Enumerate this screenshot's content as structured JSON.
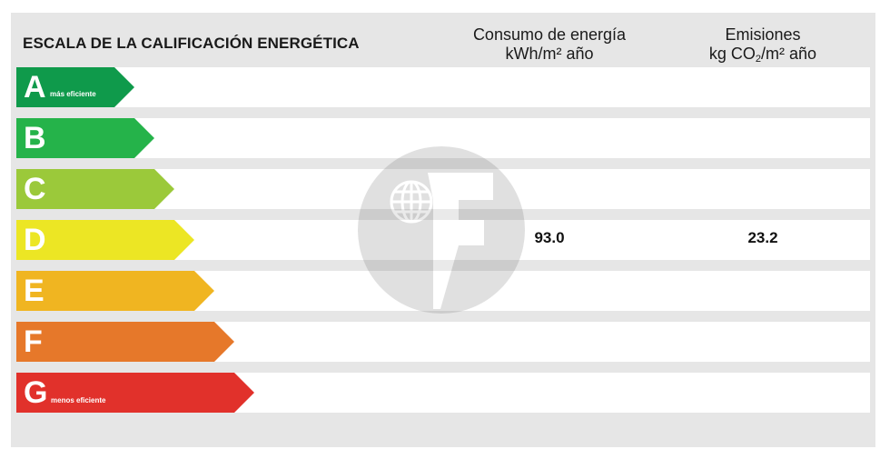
{
  "header": {
    "title": "ESCALA DE LA CALIFICACIÓN ENERGÉTICA",
    "energy_col_line1": "Consumo de energía",
    "energy_col_line2": "kWh/m² año",
    "emissions_col_line1": "Emisiones",
    "emissions_col_line2_a": "kg CO",
    "emissions_col_line2_sub": "2",
    "emissions_col_line2_b": "/m² año"
  },
  "ratings": [
    {
      "letter": "A",
      "label": "más eficiente",
      "color": "#0f9a4b",
      "energy": "",
      "emissions": ""
    },
    {
      "letter": "B",
      "label": "",
      "color": "#25b34a",
      "energy": "",
      "emissions": ""
    },
    {
      "letter": "C",
      "label": "",
      "color": "#9bc93a",
      "energy": "",
      "emissions": ""
    },
    {
      "letter": "D",
      "label": "",
      "color": "#ece624",
      "energy": "93.0",
      "emissions": "23.2"
    },
    {
      "letter": "E",
      "label": "",
      "color": "#f0b521",
      "energy": "",
      "emissions": ""
    },
    {
      "letter": "F",
      "label": "",
      "color": "#e6782a",
      "energy": "",
      "emissions": ""
    },
    {
      "letter": "G",
      "label": "menos eficiente",
      "color": "#e1312b",
      "energy": "",
      "emissions": ""
    }
  ],
  "watermark_icon": "globe-f-logo-icon"
}
